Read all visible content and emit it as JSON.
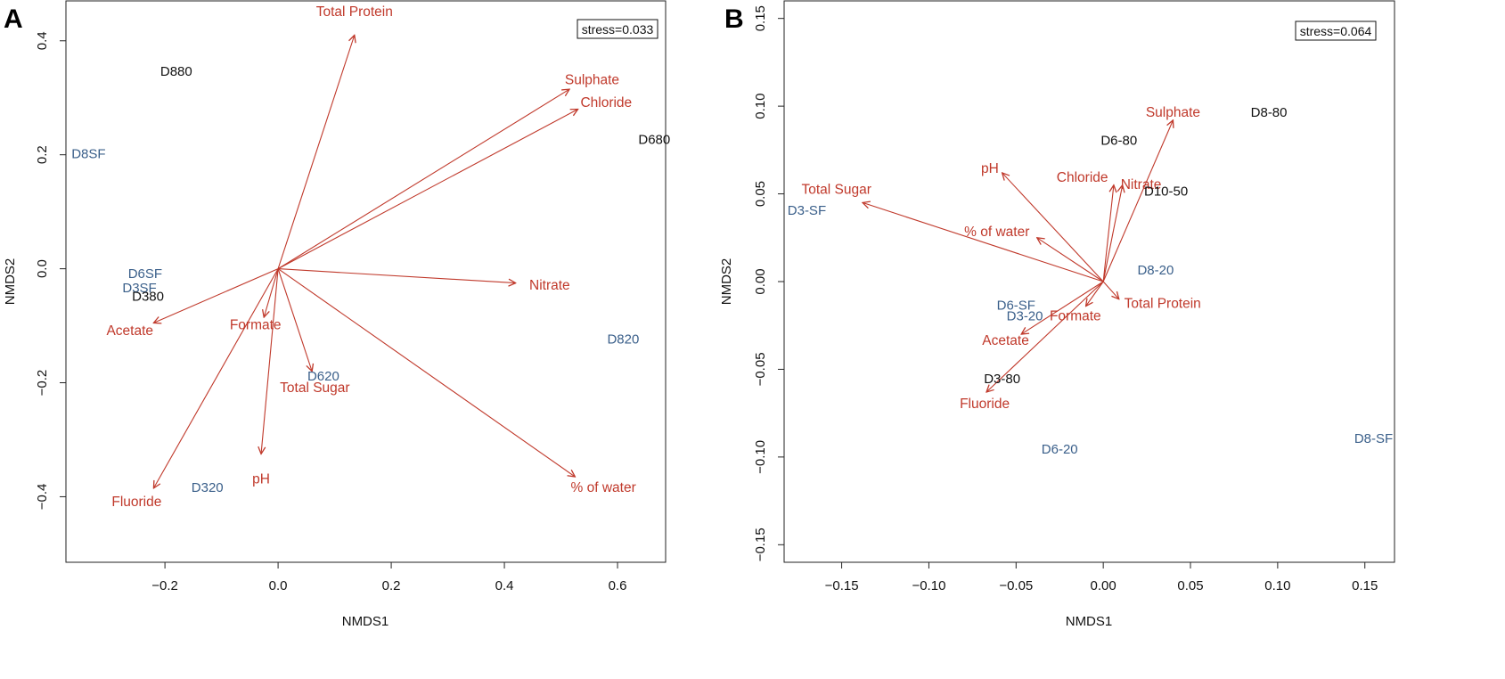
{
  "colors": {
    "vector": "#c0392b",
    "group_black": "#111111",
    "group_blue": "#3a5f8a",
    "axis": "#222222"
  },
  "chart_data": [
    {
      "panel": "A",
      "type": "scatter",
      "title": "",
      "xlabel": "NMDS1",
      "ylabel": "NMDS2",
      "stress_label": "stress=0.033",
      "xlim": [
        -0.375,
        0.685
      ],
      "ylim": [
        -0.515,
        0.47
      ],
      "xticks": [
        -0.2,
        0.0,
        0.2,
        0.4,
        0.6
      ],
      "xtick_labels": [
        "−0.2",
        "0.0",
        "0.2",
        "0.4",
        "0.6"
      ],
      "yticks": [
        -0.4,
        -0.2,
        0.0,
        0.2,
        0.4
      ],
      "ytick_labels": [
        "−0.4",
        "−0.2",
        "0.0",
        "0.2",
        "0.4"
      ],
      "sites": [
        {
          "label": "D880",
          "x": -0.18,
          "y": 0.345,
          "group": "black"
        },
        {
          "label": "D680",
          "x": 0.665,
          "y": 0.225,
          "group": "black"
        },
        {
          "label": "D8SF",
          "x": -0.335,
          "y": 0.2,
          "group": "blue"
        },
        {
          "label": "D6SF",
          "x": -0.235,
          "y": -0.01,
          "group": "blue"
        },
        {
          "label": "D3SF",
          "x": -0.245,
          "y": -0.035,
          "group": "blue"
        },
        {
          "label": "D380",
          "x": -0.23,
          "y": -0.05,
          "group": "black"
        },
        {
          "label": "D820",
          "x": 0.61,
          "y": -0.125,
          "group": "blue"
        },
        {
          "label": "D620",
          "x": 0.08,
          "y": -0.19,
          "group": "blue"
        },
        {
          "label": "D320",
          "x": -0.125,
          "y": -0.385,
          "group": "blue"
        }
      ],
      "vectors": [
        {
          "label": "Total Protein",
          "x": 0.135,
          "y": 0.41,
          "label_x": 0.135,
          "label_y": 0.45,
          "anchor": "middle"
        },
        {
          "label": "Sulphate",
          "x": 0.515,
          "y": 0.315,
          "label_x": 0.555,
          "label_y": 0.33,
          "anchor": "middle"
        },
        {
          "label": "Chloride",
          "x": 0.53,
          "y": 0.28,
          "label_x": 0.58,
          "label_y": 0.29,
          "anchor": "middle"
        },
        {
          "label": "Nitrate",
          "x": 0.42,
          "y": -0.025,
          "label_x": 0.48,
          "label_y": -0.03,
          "anchor": "middle"
        },
        {
          "label": "% of water",
          "x": 0.525,
          "y": -0.365,
          "label_x": 0.575,
          "label_y": -0.385,
          "anchor": "middle"
        },
        {
          "label": "Acetate",
          "x": -0.22,
          "y": -0.095,
          "label_x": -0.262,
          "label_y": -0.11,
          "anchor": "middle"
        },
        {
          "label": "Formate",
          "x": -0.025,
          "y": -0.085,
          "label_x": -0.04,
          "label_y": -0.1,
          "anchor": "middle"
        },
        {
          "label": "Total Sugar",
          "x": 0.06,
          "y": -0.18,
          "label_x": 0.065,
          "label_y": -0.21,
          "anchor": "middle"
        },
        {
          "label": "pH",
          "x": -0.03,
          "y": -0.325,
          "label_x": -0.03,
          "label_y": -0.37,
          "anchor": "middle"
        },
        {
          "label": "Fluoride",
          "x": -0.22,
          "y": -0.385,
          "label_x": -0.25,
          "label_y": -0.41,
          "anchor": "middle"
        }
      ]
    },
    {
      "panel": "B",
      "type": "scatter",
      "title": "",
      "xlabel": "NMDS1",
      "ylabel": "NMDS2",
      "stress_label": "stress=0.064",
      "xlim": [
        -0.183,
        0.167
      ],
      "ylim": [
        -0.16,
        0.16
      ],
      "xticks": [
        -0.15,
        -0.1,
        -0.05,
        0.0,
        0.05,
        0.1,
        0.15
      ],
      "xtick_labels": [
        "−0.15",
        "−0.10",
        "−0.05",
        "0.00",
        "0.05",
        "0.10",
        "0.15"
      ],
      "yticks": [
        -0.15,
        -0.1,
        -0.05,
        0.0,
        0.05,
        0.1,
        0.15
      ],
      "ytick_labels": [
        "−0.15",
        "−0.10",
        "−0.05",
        "0.00",
        "0.05",
        "0.10",
        "0.15"
      ],
      "sites": [
        {
          "label": "D8-80",
          "x": 0.095,
          "y": 0.096,
          "group": "black"
        },
        {
          "label": "D6-80",
          "x": 0.009,
          "y": 0.08,
          "group": "black"
        },
        {
          "label": "D10-50",
          "x": 0.036,
          "y": 0.051,
          "group": "black"
        },
        {
          "label": "D3-SF",
          "x": -0.17,
          "y": 0.04,
          "group": "blue"
        },
        {
          "label": "D8-20",
          "x": 0.03,
          "y": 0.006,
          "group": "blue"
        },
        {
          "label": "D6-SF",
          "x": -0.05,
          "y": -0.014,
          "group": "blue"
        },
        {
          "label": "D3-20",
          "x": -0.045,
          "y": -0.02,
          "group": "blue"
        },
        {
          "label": "D3-80",
          "x": -0.058,
          "y": -0.056,
          "group": "black"
        },
        {
          "label": "D6-20",
          "x": -0.025,
          "y": -0.096,
          "group": "blue"
        },
        {
          "label": "D8-SF",
          "x": 0.155,
          "y": -0.09,
          "group": "blue"
        }
      ],
      "vectors": [
        {
          "label": "Sulphate",
          "x": 0.04,
          "y": 0.092,
          "label_x": 0.04,
          "label_y": 0.096,
          "anchor": "middle"
        },
        {
          "label": "pH",
          "x": -0.058,
          "y": 0.062,
          "label_x": -0.065,
          "label_y": 0.064,
          "anchor": "middle"
        },
        {
          "label": "Chloride",
          "x": 0.006,
          "y": 0.055,
          "label_x": -0.012,
          "label_y": 0.059,
          "anchor": "middle"
        },
        {
          "label": "Nitrate",
          "x": 0.011,
          "y": 0.055,
          "label_x": 0.01,
          "label_y": 0.055,
          "anchor": "start"
        },
        {
          "label": "Total Sugar",
          "x": -0.138,
          "y": 0.045,
          "label_x": -0.153,
          "label_y": 0.052,
          "anchor": "middle"
        },
        {
          "label": "% of water",
          "x": -0.038,
          "y": 0.025,
          "label_x": -0.061,
          "label_y": 0.028,
          "anchor": "middle"
        },
        {
          "label": "Total Protein",
          "x": 0.009,
          "y": -0.01,
          "label_x": 0.012,
          "label_y": -0.013,
          "anchor": "start"
        },
        {
          "label": "Formate",
          "x": -0.01,
          "y": -0.014,
          "label_x": -0.016,
          "label_y": -0.02,
          "anchor": "middle"
        },
        {
          "label": "Acetate",
          "x": -0.047,
          "y": -0.03,
          "label_x": -0.056,
          "label_y": -0.034,
          "anchor": "middle"
        },
        {
          "label": "Fluoride",
          "x": -0.067,
          "y": -0.063,
          "label_x": -0.068,
          "label_y": -0.07,
          "anchor": "middle"
        }
      ]
    }
  ]
}
